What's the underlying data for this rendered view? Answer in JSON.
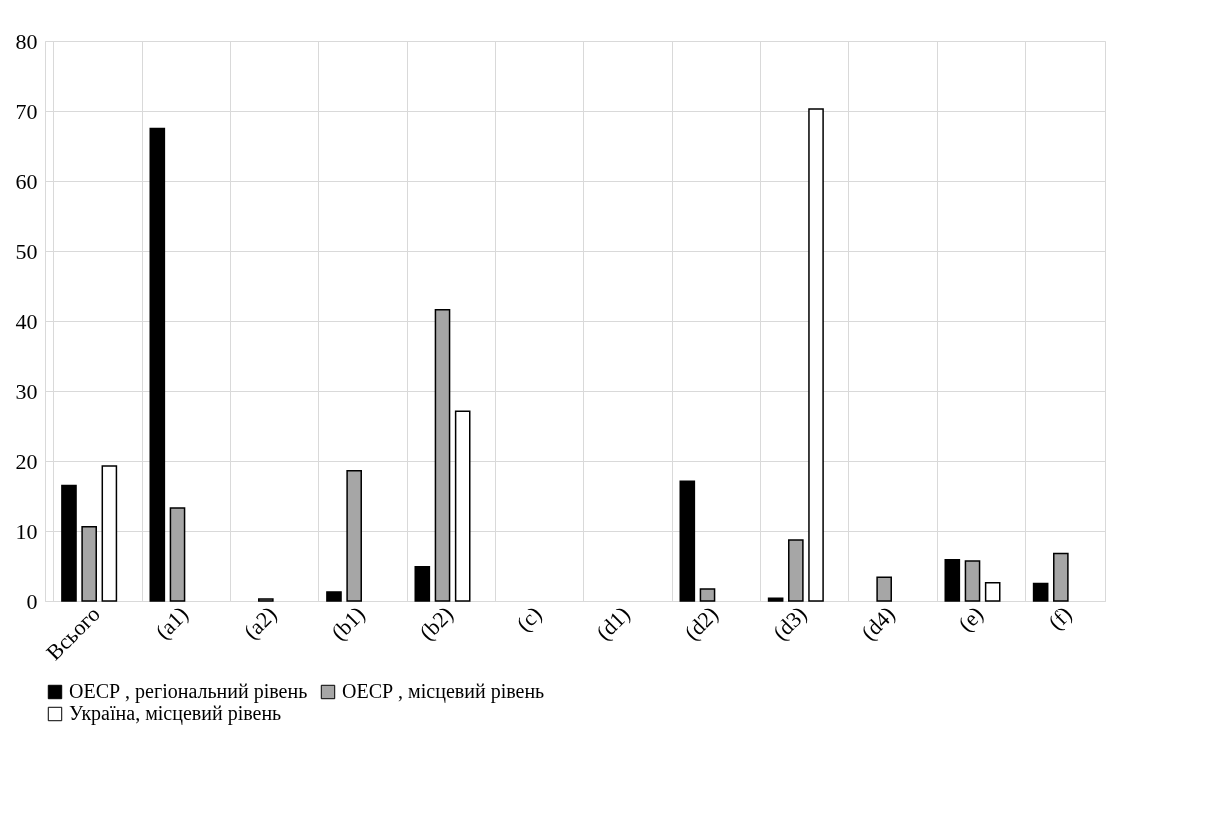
{
  "chart_data": {
    "type": "bar",
    "categories": [
      "Всього",
      "(a1)",
      "(a2)",
      "(b1)",
      "(b2)",
      "(c)",
      "(d1)",
      "(d2)",
      "(d3)",
      "(d4)",
      "(e)",
      "(f)"
    ],
    "series": [
      {
        "name": "ОЕСР , регіональний рівень",
        "color": "#000000",
        "values": [
          16.5,
          67.5,
          null,
          1.3,
          4.9,
          null,
          null,
          17.1,
          0.4,
          null,
          5.9,
          2.5
        ]
      },
      {
        "name": "ОЕСР , місцевий рівень",
        "color": "#a6a6a6",
        "values": [
          10.6,
          13.3,
          0.3,
          18.6,
          41.6,
          null,
          null,
          1.7,
          8.7,
          3.4,
          5.7,
          6.8
        ]
      },
      {
        "name": "Україна, місцевий рівень",
        "color": "#ffffff",
        "values": [
          19.3,
          null,
          null,
          null,
          27.1,
          null,
          null,
          null,
          70.3,
          null,
          2.6,
          null
        ]
      }
    ],
    "ylim": [
      0,
      80
    ],
    "yticks": [
      0,
      10,
      20,
      30,
      40,
      50,
      60,
      70,
      80
    ],
    "grid": true,
    "legend": "bottom"
  }
}
